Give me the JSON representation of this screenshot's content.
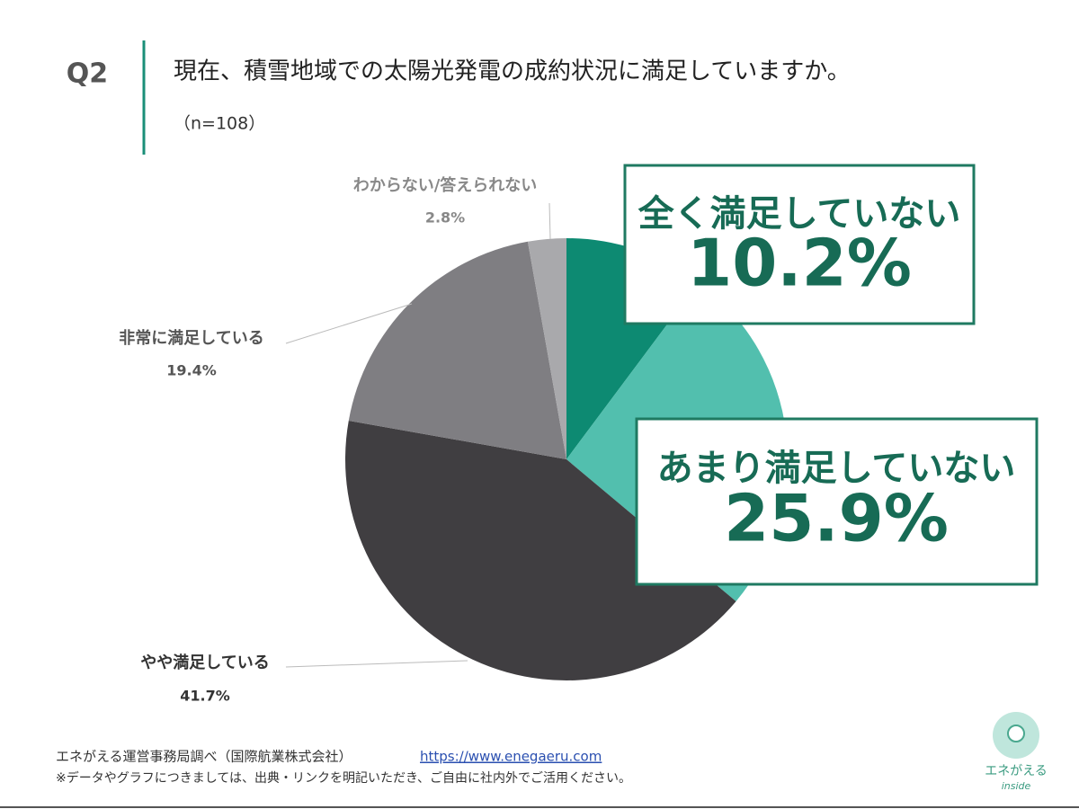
{
  "header": {
    "question": "Q2",
    "title": "現在、積雪地域での太陽光発電の成約状況に満足していますか。",
    "note": "（n=108）"
  },
  "chart_data": {
    "type": "pie",
    "categories": [
      "全く満足していない",
      "あまり満足していない",
      "やや満足している",
      "非常に満足している",
      "わからない/答えられない"
    ],
    "values": [
      10.2,
      25.9,
      41.7,
      19.4,
      2.8
    ],
    "value_labels": [
      "10.2%",
      "25.9%",
      "41.7%",
      "19.4%",
      "2.8%"
    ],
    "colors": [
      "#0d8a72",
      "#52bfae",
      "#403e41",
      "#7f7e82",
      "#a9a9ac"
    ]
  },
  "footer": {
    "source": "エネがえる運営事務局調べ（国際航業株式会社）",
    "url": "https://www.enegaeru.com",
    "notice": "※データやグラフにつきましては、出典・リンクを明記いただき、ご自由に社内外でご活用ください。"
  },
  "logo": {
    "name": "エネがえる",
    "sub": "inside"
  }
}
